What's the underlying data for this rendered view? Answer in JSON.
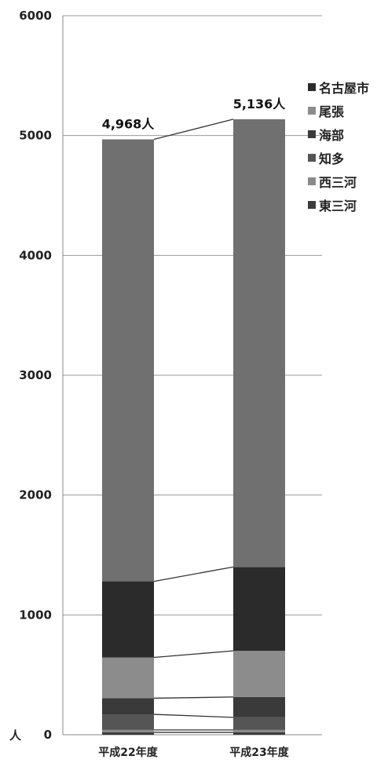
{
  "chart_data": {
    "type": "bar",
    "stacked": true,
    "categories": [
      "平成22年度",
      "平成23年度"
    ],
    "series": [
      {
        "name": "東三河",
        "color": "#3c3c3c",
        "values": [
          20,
          20
        ]
      },
      {
        "name": "西三河",
        "color": "#8a8a8a",
        "values": [
          20,
          20
        ]
      },
      {
        "name": "知多",
        "color": "#555555",
        "values": [
          130,
          105
        ]
      },
      {
        "name": "海部",
        "color": "#3a3a3a",
        "values": [
          135,
          170
        ]
      },
      {
        "name": "尾張",
        "color": "#8c8c8c",
        "values": [
          340,
          385
        ]
      },
      {
        "name": "名古屋市",
        "color": "#2b2b2b",
        "values": [
          635,
          700
        ]
      },
      {
        "name": "",
        "color": "#707070",
        "values": [
          3688,
          3736
        ]
      }
    ],
    "legend_order": [
      "名古屋市",
      "尾張",
      "海部",
      "知多",
      "西三河",
      "東三河"
    ],
    "totals": [
      "4,968人",
      "5,136人"
    ],
    "ylabel": "人",
    "ylim": [
      0,
      6000
    ],
    "yticks": [
      "0",
      "1000",
      "2000",
      "3000",
      "4000",
      "5000",
      "6000"
    ],
    "grid": true,
    "legend_position": "right"
  }
}
